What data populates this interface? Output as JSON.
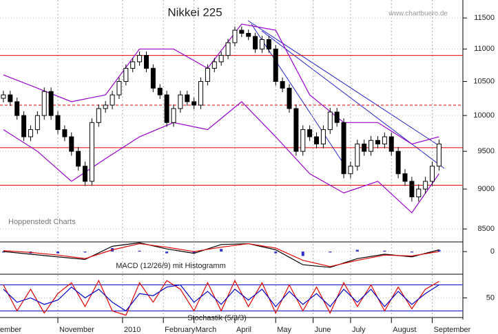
{
  "chart_data": [
    {
      "type": "candlestick",
      "title": "Nikkei 225",
      "source": "www.chartbuero.de",
      "note": "Hoppenstedt Charts",
      "log": true,
      "ylim": [
        8360,
        11800
      ],
      "yticks": [
        8500,
        9000,
        9500,
        10000,
        10500,
        11000,
        11500
      ],
      "xlim": [
        -0.5,
        67.5
      ],
      "xticks": [
        {
          "value": -1,
          "label": "ember"
        },
        {
          "value": 8,
          "label": "November"
        },
        {
          "value": 17.5,
          "label": "2010"
        },
        {
          "value": 23.5,
          "label": "February"
        },
        {
          "value": 28,
          "label": "March"
        },
        {
          "value": 34,
          "label": "April"
        },
        {
          "value": 40,
          "label": "May"
        },
        {
          "value": 45.5,
          "label": "June"
        },
        {
          "value": 51,
          "label": "July"
        },
        {
          "value": 57,
          "label": "August"
        },
        {
          "value": 63,
          "label": "September"
        }
      ],
      "open": [
        10250,
        10300,
        10200,
        10000,
        9700,
        9800,
        10000,
        10350,
        10000,
        9800,
        9700,
        9500,
        9300,
        9100,
        9900,
        10100,
        10150,
        10300,
        10500,
        10700,
        10800,
        10900,
        10700,
        10400,
        10300,
        9900,
        10100,
        10300,
        10200,
        10150,
        10500,
        10700,
        10800,
        10900,
        11100,
        11300,
        11250,
        11200,
        11000,
        11150,
        11000,
        10500,
        10400,
        10100,
        9500,
        9800,
        9700,
        9600,
        9800,
        10050,
        9900,
        9200,
        9300,
        9600,
        9500,
        9650,
        9600,
        9700,
        9500,
        9200,
        9100,
        8900,
        9000,
        9100,
        9300
      ],
      "high": [
        10360,
        10360,
        10260,
        10060,
        9860,
        10060,
        10410,
        10410,
        10060,
        9860,
        9760,
        9560,
        9360,
        9960,
        10160,
        10210,
        10360,
        10560,
        10760,
        10860,
        10960,
        10960,
        10760,
        10460,
        10360,
        10160,
        10360,
        10360,
        10260,
        10560,
        10760,
        10860,
        10960,
        11160,
        11360,
        11360,
        11310,
        11260,
        11210,
        11210,
        11060,
        10560,
        10460,
        10160,
        9860,
        9860,
        9760,
        9860,
        10110,
        10110,
        9960,
        9360,
        9660,
        9660,
        9710,
        9710,
        9760,
        9760,
        9560,
        9260,
        9160,
        9060,
        9160,
        9360,
        9660
      ],
      "low": [
        10190,
        10140,
        9940,
        9640,
        9640,
        9740,
        9940,
        9940,
        9740,
        9640,
        9440,
        9240,
        9040,
        9040,
        9840,
        10040,
        10090,
        10240,
        10440,
        10640,
        10740,
        10640,
        10340,
        10240,
        9840,
        9840,
        10040,
        10140,
        10090,
        10090,
        10440,
        10640,
        10740,
        10840,
        11040,
        11190,
        11140,
        10940,
        10940,
        10940,
        10440,
        10340,
        10040,
        9440,
        9440,
        9640,
        9540,
        9540,
        9740,
        9840,
        9140,
        9140,
        9240,
        9440,
        9440,
        9540,
        9540,
        9440,
        9140,
        9040,
        8840,
        8840,
        8940,
        9040,
        9240
      ],
      "close": [
        10300,
        10200,
        10000,
        9700,
        9800,
        10000,
        10350,
        10000,
        9800,
        9700,
        9500,
        9300,
        9100,
        9900,
        10100,
        10150,
        10300,
        10500,
        10700,
        10800,
        10900,
        10700,
        10400,
        10300,
        9900,
        10100,
        10300,
        10200,
        10150,
        10500,
        10700,
        10800,
        10900,
        11100,
        11300,
        11250,
        11200,
        11000,
        11150,
        11000,
        10500,
        10400,
        10100,
        9500,
        9800,
        9700,
        9600,
        9800,
        10050,
        9900,
        9200,
        9300,
        9600,
        9500,
        9650,
        9600,
        9700,
        9500,
        9200,
        9100,
        8900,
        9000,
        9100,
        9300,
        9600
      ],
      "band_x": [
        0,
        5,
        10,
        15,
        20,
        25,
        30,
        35,
        40,
        45,
        50,
        55,
        60,
        64
      ],
      "band_upper": [
        10600,
        10400,
        10200,
        10300,
        11000,
        11000,
        10700,
        11400,
        11300,
        10300,
        9900,
        9900,
        9600,
        9700
      ],
      "band_lower": [
        9800,
        9500,
        9100,
        9400,
        9700,
        9900,
        9800,
        10200,
        9700,
        9200,
        8950,
        9100,
        8700,
        9200
      ],
      "band_color": "#9900cc",
      "hlines": [
        10900,
        9550,
        9050
      ],
      "dashed_hlines": [
        10150
      ],
      "hline_color": "#e00000"
    },
    {
      "type": "macd",
      "label": "MACD (12/26/9) mit Histogramm",
      "ylim": [
        -250,
        110
      ],
      "yticks": [
        0
      ],
      "x": [
        0,
        4,
        8,
        12,
        16,
        20,
        24,
        28,
        32,
        36,
        40,
        44,
        48,
        52,
        56,
        60,
        64
      ],
      "series": [
        {
          "color": "#000000",
          "values": [
            0,
            -30,
            -60,
            -90,
            60,
            100,
            30,
            -20,
            80,
            90,
            20,
            -150,
            -180,
            -80,
            -30,
            -60,
            20
          ]
        },
        {
          "color": "#e00000",
          "values": [
            10,
            -10,
            -40,
            -80,
            20,
            90,
            50,
            0,
            50,
            90,
            40,
            -100,
            -170,
            -100,
            -40,
            -50,
            0
          ]
        }
      ],
      "histogram": [
        -10,
        -20,
        -20,
        -10,
        40,
        10,
        -20,
        -20,
        30,
        0,
        -20,
        -50,
        -10,
        20,
        10,
        -10,
        20
      ],
      "histogram_color": "#3333cc"
    },
    {
      "type": "stochastic",
      "label": "Stochastik (5/3/3)",
      "ylim": [
        8,
        103
      ],
      "yticks": [
        50
      ],
      "hlines": [
        80,
        20
      ],
      "hline_color": "#0000cc",
      "x": [
        0,
        2,
        4,
        6,
        8,
        10,
        12,
        14,
        16,
        18,
        20,
        22,
        24,
        26,
        28,
        30,
        32,
        34,
        36,
        38,
        40,
        42,
        44,
        46,
        48,
        50,
        52,
        54,
        56,
        58,
        60,
        62,
        64
      ],
      "series": [
        {
          "color": "#e00000",
          "values": [
            80,
            20,
            70,
            15,
            60,
            85,
            30,
            90,
            20,
            10,
            85,
            40,
            90,
            70,
            20,
            85,
            20,
            90,
            30,
            85,
            15,
            80,
            20,
            75,
            15,
            85,
            30,
            80,
            20,
            75,
            25,
            70,
            88
          ]
        },
        {
          "color": "#0000cc",
          "values": [
            70,
            40,
            50,
            35,
            45,
            75,
            50,
            70,
            40,
            20,
            60,
            55,
            75,
            80,
            40,
            65,
            35,
            70,
            45,
            70,
            30,
            65,
            35,
            60,
            30,
            70,
            40,
            70,
            30,
            65,
            35,
            60,
            80
          ]
        }
      ]
    }
  ]
}
